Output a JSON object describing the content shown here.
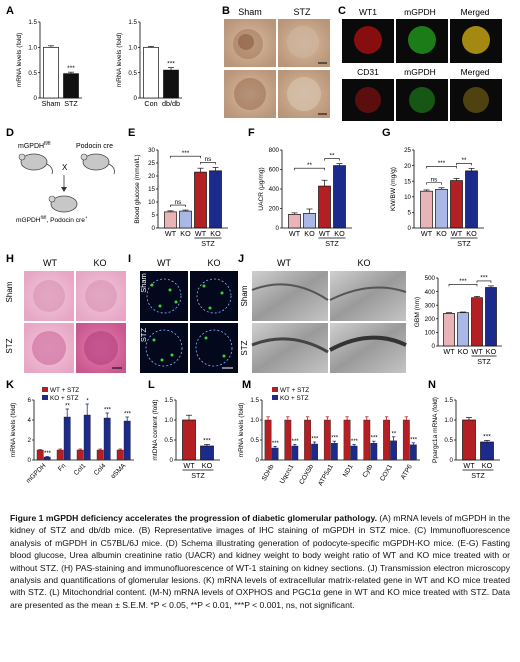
{
  "figure": {
    "panel_letters": [
      "A",
      "B",
      "C",
      "D",
      "E",
      "F",
      "G",
      "H",
      "I",
      "J",
      "K",
      "L",
      "M",
      "N"
    ],
    "micrograph_labels": {
      "B": {
        "cols": [
          "Sham",
          "STZ"
        ]
      },
      "C": {
        "row1": [
          "WT1",
          "mGPDH",
          "Merged"
        ],
        "row2": [
          "CD31",
          "mGPDH",
          "Merged"
        ]
      },
      "H": {
        "cols": [
          "WT",
          "KO"
        ],
        "rows": [
          "Sham",
          "STZ"
        ]
      },
      "I": {
        "cols": [
          "WT",
          "KO"
        ],
        "rows": [
          "Sham",
          "STZ"
        ]
      },
      "J": {
        "cols": [
          "WT",
          "KO"
        ],
        "rows": [
          "Sham",
          "STZ"
        ]
      }
    },
    "colors": {
      "white_bar": "#ffffff",
      "black_bar": "#111111",
      "pink_bar": "#e8b4b8",
      "light_blue_bar": "#a9b8e6",
      "red_bar": "#b41f24",
      "navy_bar": "#1c2a8c"
    },
    "schema_D": {
      "mouse1": "mGPDH",
      "mouse1_sup": "fl/fl",
      "mouse2": "Podocin cre",
      "cross": "X",
      "offspring": "mGPDH",
      "offspring_sup": "fl/fl",
      "offspring_tail": ", Podocin cre",
      "offspring_sup2": "+"
    }
  },
  "chart_data": [
    {
      "panel": "A1",
      "type": "bar",
      "categories": [
        "Sham",
        "STZ"
      ],
      "values": [
        1.0,
        0.48
      ],
      "errors": [
        0.03,
        0.03
      ],
      "ylabel": "mRNA levels (fold)",
      "yticks": [
        0,
        0.5,
        1.0,
        1.5
      ],
      "ylim": [
        0,
        1.5
      ],
      "colors": [
        "#ffffff",
        "#111111"
      ],
      "sig": [
        {
          "label": "***",
          "bar": 1
        }
      ]
    },
    {
      "panel": "A2",
      "type": "bar",
      "categories": [
        "Con",
        "db/db"
      ],
      "values": [
        1.0,
        0.55
      ],
      "errors": [
        0.02,
        0.05
      ],
      "ylabel": "mRNA levels (fold)",
      "yticks": [
        0,
        0.5,
        1.0,
        1.5
      ],
      "ylim": [
        0,
        1.5
      ],
      "colors": [
        "#ffffff",
        "#111111"
      ],
      "sig": [
        {
          "label": "***",
          "bar": 1
        }
      ]
    },
    {
      "panel": "E",
      "type": "bar",
      "categories": [
        "WT",
        "KO",
        "WT",
        "KO"
      ],
      "group_label": "STZ",
      "values": [
        6.2,
        6.5,
        21.5,
        22.0
      ],
      "errors": [
        0.4,
        0.4,
        1.5,
        1.3
      ],
      "ylabel": "Blood glucose (mmol/L)",
      "yticks": [
        0,
        5,
        10,
        15,
        20,
        25,
        30
      ],
      "ylim": [
        0,
        30
      ],
      "colors": [
        "#e8b4b8",
        "#a9b8e6",
        "#b41f24",
        "#1c2a8c"
      ],
      "sig": [
        {
          "label": "ns",
          "from": 0,
          "to": 1
        },
        {
          "label": "***",
          "from": 0,
          "to": 2
        },
        {
          "label": "ns",
          "from": 2,
          "to": 3
        }
      ]
    },
    {
      "panel": "F",
      "type": "bar",
      "categories": [
        "WT",
        "KO",
        "WT",
        "KO"
      ],
      "group_label": "STZ",
      "values": [
        140,
        150,
        430,
        640
      ],
      "errors": [
        15,
        45,
        60,
        20
      ],
      "ylabel": "UACR (μg/mg)",
      "yticks": [
        0,
        200,
        400,
        600,
        800
      ],
      "ylim": [
        0,
        800
      ],
      "colors": [
        "#e8b4b8",
        "#a9b8e6",
        "#b41f24",
        "#1c2a8c"
      ],
      "sig": [
        {
          "label": "**",
          "from": 0,
          "to": 2
        },
        {
          "label": "**",
          "from": 2,
          "to": 3
        }
      ]
    },
    {
      "panel": "G",
      "type": "bar",
      "categories": [
        "WT",
        "KO",
        "WT",
        "KO"
      ],
      "group_label": "STZ",
      "values": [
        11.8,
        12.4,
        15.2,
        18.3
      ],
      "errors": [
        0.4,
        0.5,
        0.7,
        0.8
      ],
      "ylabel": "KW/BW (mg/g)",
      "yticks": [
        0,
        5,
        10,
        15,
        20,
        25
      ],
      "ylim": [
        0,
        25
      ],
      "colors": [
        "#e8b4b8",
        "#a9b8e6",
        "#b41f24",
        "#1c2a8c"
      ],
      "sig": [
        {
          "label": "ns",
          "from": 0,
          "to": 1
        },
        {
          "label": "***",
          "from": 0,
          "to": 2
        },
        {
          "label": "**",
          "from": 2,
          "to": 3
        }
      ]
    },
    {
      "panel": "J-quant",
      "type": "bar",
      "categories": [
        "WT",
        "KO",
        "WT",
        "KO"
      ],
      "group_label": "STZ",
      "values": [
        240,
        245,
        355,
        430
      ],
      "errors": [
        5,
        5,
        10,
        12
      ],
      "ylabel": "GBM (nm)",
      "yticks": [
        0,
        100,
        200,
        300,
        400,
        500
      ],
      "ylim": [
        0,
        500
      ],
      "colors": [
        "#e8b4b8",
        "#a9b8e6",
        "#b41f24",
        "#1c2a8c"
      ],
      "sig": [
        {
          "label": "***",
          "from": 0,
          "to": 2
        },
        {
          "label": "***",
          "from": 2,
          "to": 3
        }
      ]
    },
    {
      "panel": "K",
      "type": "bar",
      "categories": [
        "mGPDH",
        "Fn",
        "Col1",
        "Col4",
        "αSMA"
      ],
      "series": [
        {
          "name": "WT + STZ",
          "values": [
            1.0,
            1.0,
            1.0,
            1.0,
            1.0
          ],
          "errors": [
            0.05,
            0.1,
            0.1,
            0.1,
            0.1
          ],
          "color": "#b41f24"
        },
        {
          "name": "KO + STZ",
          "values": [
            0.3,
            4.3,
            4.5,
            4.2,
            3.9
          ],
          "errors": [
            0.05,
            0.8,
            1.1,
            0.5,
            0.4
          ],
          "color": "#1c2a8c"
        }
      ],
      "ylabel": "mRNA levels (fold)",
      "yticks": [
        0,
        2,
        4,
        6
      ],
      "ylim": [
        0,
        6
      ],
      "sig": [
        "***",
        "**",
        "*",
        "***",
        "***"
      ]
    },
    {
      "panel": "L",
      "type": "bar",
      "categories": [
        "WT",
        "KO"
      ],
      "group_label": "STZ",
      "values": [
        1.0,
        0.35
      ],
      "errors": [
        0.12,
        0.04
      ],
      "ylabel": "mtDNA content (fold)",
      "yticks": [
        0,
        0.5,
        1.0,
        1.5
      ],
      "ylim": [
        0,
        1.5
      ],
      "colors": [
        "#b41f24",
        "#1c2a8c"
      ],
      "sig": [
        {
          "label": "***",
          "bar": 1
        }
      ]
    },
    {
      "panel": "M",
      "type": "bar",
      "categories": [
        "SDHb",
        "Uqcrc1",
        "COX5b",
        "ATP5a1",
        "ND1",
        "Cytb",
        "COX1",
        "ATP6"
      ],
      "series": [
        {
          "name": "WT + STZ",
          "values": [
            1.0,
            1.0,
            1.0,
            1.0,
            1.0,
            1.0,
            1.0,
            1.0
          ],
          "errors": [
            0.08,
            0.08,
            0.08,
            0.08,
            0.08,
            0.08,
            0.08,
            0.08
          ],
          "color": "#b41f24"
        },
        {
          "name": "KO + STZ",
          "values": [
            0.3,
            0.35,
            0.4,
            0.42,
            0.35,
            0.42,
            0.48,
            0.38
          ],
          "errors": [
            0.04,
            0.04,
            0.05,
            0.05,
            0.04,
            0.05,
            0.1,
            0.05
          ],
          "color": "#1c2a8c"
        }
      ],
      "ylabel": "mRNA levels (fold)",
      "yticks": [
        0,
        0.5,
        1.0,
        1.5
      ],
      "ylim": [
        0,
        1.5
      ],
      "sig": [
        "***",
        "***",
        "***",
        "***",
        "***",
        "***",
        "**",
        "***"
      ]
    },
    {
      "panel": "N",
      "type": "bar",
      "categories": [
        "WT",
        "KO"
      ],
      "group_label": "STZ",
      "values": [
        1.0,
        0.45
      ],
      "errors": [
        0.06,
        0.04
      ],
      "ylabel": "Ppargc1a mRNA (fold)",
      "yticks": [
        0,
        0.5,
        1.0,
        1.5
      ],
      "ylim": [
        0,
        1.5
      ],
      "colors": [
        "#b41f24",
        "#1c2a8c"
      ],
      "sig": [
        {
          "label": "***",
          "bar": 1
        }
      ]
    }
  ],
  "caption": {
    "title": "Figure 1 mGPDH deficiency accelerates the progression of diabetic glomerular pathology.",
    "body": " (A) mRNA levels of mGPDH in the kidney of STZ and db/db mice. (B) Representative images of IHC staining of mGPDH in STZ mice. (C) Immunofluorescence analysis of mGPDH in C57BL/6J mice. (D) Schema illustrating generation of podocyte-specific mGPDH-KO mice. (E-G) Fasting blood glucose, Urea albumin creatinine ratio (UACR) and kidney weight to body weight ratio of WT and KO mice treated with or without STZ. (H) PAS-staining and immunofluorescence of WT-1 staining on kidney sections. (J) Transmission electron microscopy analysis and quantifications of glomerular lesions. (K) mRNA levels of extracellular matrix-related gene in WT and KO mice treated with STZ. (L) Mitochondrial content. (M-N) mRNA levels of OXPHOS and PGC1α gene in WT and KO mice treated with STZ. Data are presented as the mean ± S.E.M. *P < 0.05, **P < 0.01, ***P < 0.001, ns, not significant."
  }
}
